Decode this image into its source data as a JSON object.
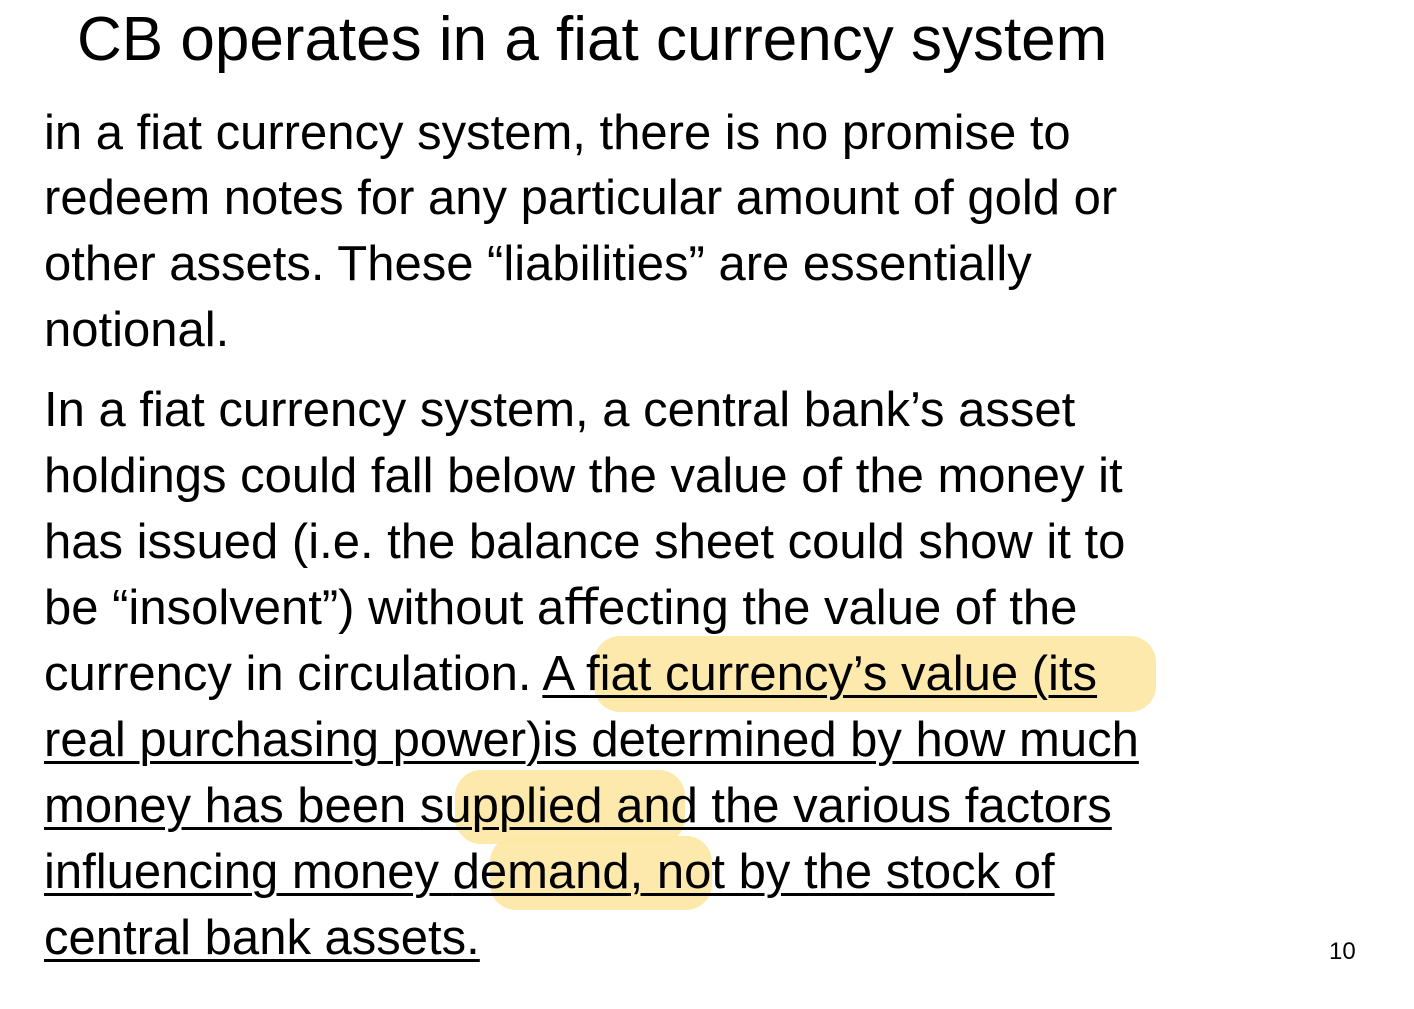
{
  "slide": {
    "title": "CB operates in a fiat currency system",
    "paragraph1": [
      "in a fiat currency system, there is no promise to",
      "redeem notes for any particular amount of gold or",
      "other assets. These “liabilities” are essentially",
      "notional."
    ],
    "paragraph2": {
      "line1": "In a fiat currency system, a central bank’s asset",
      "line2": "holdings could fall below the value of the money it",
      "line3": "has issued (i.e. the balance sheet could show it to",
      "line4": "be “insolvent”) without aﬀecting the value of the",
      "line5_plain": "currency in circulation. ",
      "line5_underlined": "A fiat currency’s value (its",
      "line6": "real purchasing power)is determined by how much",
      "line7_a": "money has been ",
      "line7_b": "supplied",
      "line7_c": " and the various factors",
      "line8_a": "influencing money ",
      "line8_b": "demand",
      "line8_c": ", not by the stock of",
      "line9": "central bank assets."
    },
    "page_number": "10",
    "highlight_color": "#fce8a6"
  }
}
